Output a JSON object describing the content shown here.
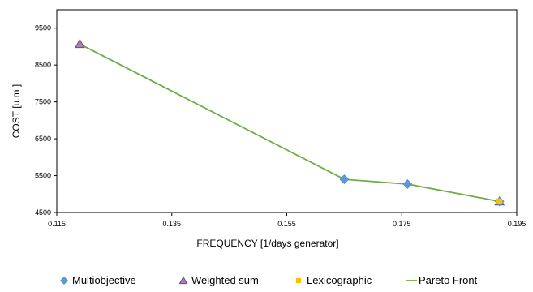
{
  "chart_data": {
    "type": "scatter",
    "xlabel": "FREQUENCY [1/days generator]",
    "ylabel": "COST [u.m.]",
    "xlim": [
      0.115,
      0.195
    ],
    "ylim": [
      4500,
      10000
    ],
    "x_ticks": [
      "0.115",
      "0.135",
      "0.155",
      "0.175",
      "0.195"
    ],
    "y_ticks": [
      "4500",
      "5500",
      "6500",
      "7500",
      "8500",
      "9500"
    ],
    "x_tick_values": [
      0.115,
      0.135,
      0.155,
      0.175,
      0.195
    ],
    "y_tick_values": [
      4500,
      5500,
      6500,
      7500,
      8500,
      9500
    ],
    "grid": false,
    "legend_position": "bottom",
    "series": [
      {
        "name": "Multiobjective",
        "marker": "diamond",
        "color": "#5b9bd5",
        "x": [
          0.165,
          0.176,
          0.192
        ],
        "y": [
          5400,
          5270,
          4800
        ]
      },
      {
        "name": "Weighted sum",
        "marker": "triangle",
        "color": "#a882b6",
        "x": [
          0.119,
          0.192
        ],
        "y": [
          9070,
          4800
        ]
      },
      {
        "name": "Lexicographic",
        "marker": "square",
        "color": "#ffc000",
        "x": [
          0.192
        ],
        "y": [
          4800
        ]
      },
      {
        "name": "Pareto Front",
        "marker": "line",
        "color": "#70ad47",
        "x": [
          0.119,
          0.165,
          0.176,
          0.192
        ],
        "y": [
          9070,
          5400,
          5270,
          4800
        ]
      }
    ]
  }
}
